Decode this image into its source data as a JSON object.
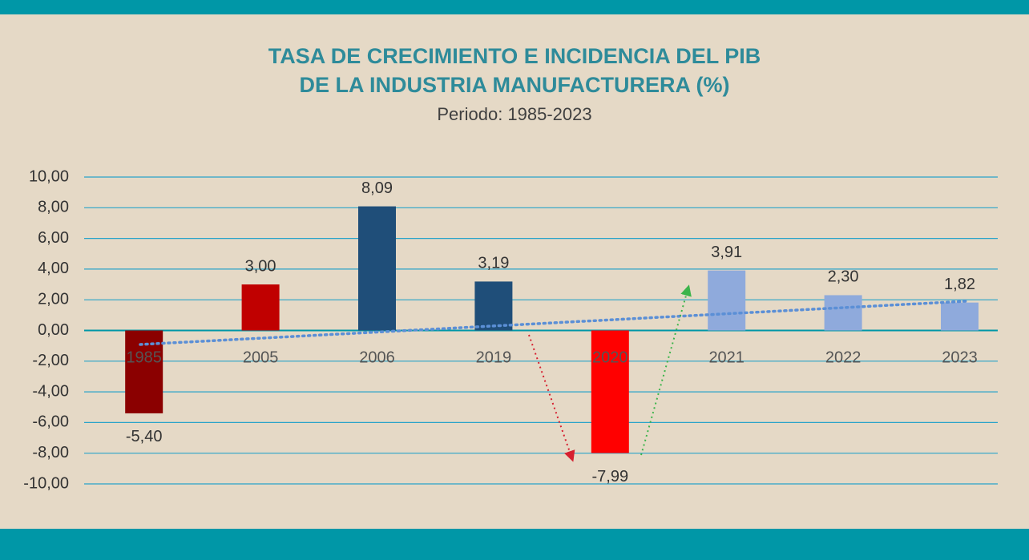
{
  "chart_data": {
    "type": "bar",
    "title": "TASA DE CRECIMIENTO E INCIDENCIA DEL PIB",
    "title_line2": "DE LA INDUSTRIA MANUFACTURERA (%)",
    "subtitle": "Periodo: 1985-2023",
    "categories": [
      "1985",
      "2005",
      "2006",
      "2019",
      "2020",
      "2021",
      "2022",
      "2023"
    ],
    "values": [
      -5.4,
      3.0,
      8.09,
      3.19,
      -7.99,
      3.91,
      2.3,
      1.82
    ],
    "value_labels": [
      "-5,40",
      "3,00",
      "8,09",
      "3,19",
      "-7,99",
      "3,91",
      "2,30",
      "1,82"
    ],
    "colors": [
      "#8b0000",
      "#c00000",
      "#1f4e79",
      "#1f4e79",
      "#ff0000",
      "#8faadc",
      "#8faadc",
      "#8faadc"
    ],
    "ylim": [
      -10,
      10
    ],
    "yticks": [
      {
        "value": -10,
        "label": "-10,00"
      },
      {
        "value": -8,
        "label": "-8,00"
      },
      {
        "value": -6,
        "label": "-6,00"
      },
      {
        "value": -4,
        "label": "-4,00"
      },
      {
        "value": -2,
        "label": "-2,00"
      },
      {
        "value": 0,
        "label": "0,00"
      },
      {
        "value": 2,
        "label": "2,00"
      },
      {
        "value": 4,
        "label": "4,00"
      },
      {
        "value": 6,
        "label": "6,00"
      },
      {
        "value": 8,
        "label": "8,00"
      },
      {
        "value": 10,
        "label": "10,00"
      }
    ],
    "grid": true
  }
}
